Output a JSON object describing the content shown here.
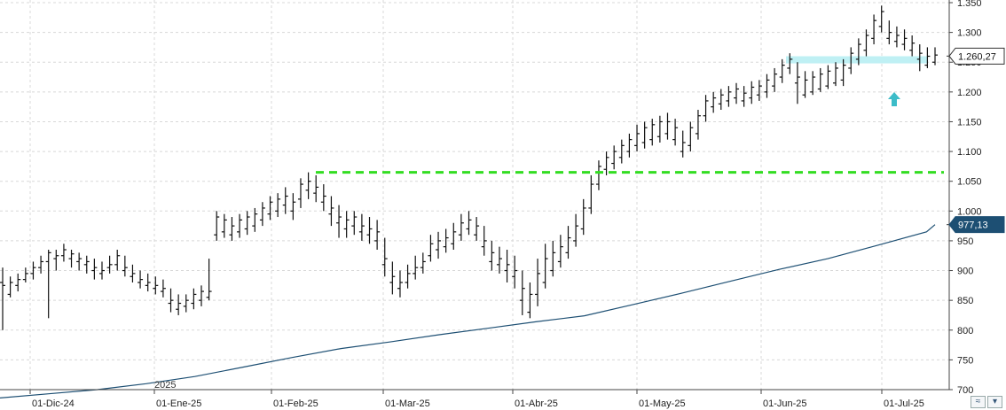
{
  "chart_data": {
    "type": "ohlc",
    "title": "",
    "y_axis": {
      "ticks": [
        "1.350",
        "1.300",
        "1.250",
        "1.200",
        "1.150",
        "1.100",
        "1.050",
        "1.000",
        "950",
        "900",
        "850",
        "800",
        "750",
        "700"
      ],
      "ylim": [
        700,
        1350
      ]
    },
    "x_axis": {
      "ticks": [
        "01-Dic-24",
        "01-Ene-25",
        "01-Feb-25",
        "01-Mar-25",
        "01-Abr-25",
        "01-May-25",
        "01-Jun-25",
        "01-Jul-25"
      ],
      "year_marker": "2025"
    },
    "price_flag": {
      "label": "1.260,27",
      "value": 1260.27,
      "color": "#ffffff"
    },
    "ma_flag": {
      "label": "977,13",
      "value": 977.13,
      "color": "#1d4f73"
    },
    "support_line": {
      "value": 1065,
      "color": "#33dd22",
      "style": "dashed"
    },
    "resistance_zone": {
      "low": 1248,
      "high": 1260,
      "color": "#bff0f4"
    },
    "arrow_marker": {
      "color": "#3cbcc8",
      "direction": "up"
    },
    "bars": [
      [
        880,
        905,
        800,
        875
      ],
      [
        860,
        890,
        855,
        880
      ],
      [
        875,
        895,
        865,
        885
      ],
      [
        885,
        905,
        880,
        895
      ],
      [
        895,
        915,
        885,
        905
      ],
      [
        905,
        925,
        895,
        915
      ],
      [
        915,
        935,
        820,
        930
      ],
      [
        920,
        935,
        900,
        925
      ],
      [
        925,
        945,
        915,
        935
      ],
      [
        920,
        935,
        905,
        928
      ],
      [
        915,
        930,
        900,
        920
      ],
      [
        910,
        925,
        895,
        915
      ],
      [
        900,
        920,
        885,
        905
      ],
      [
        895,
        915,
        885,
        900
      ],
      [
        905,
        925,
        895,
        910
      ],
      [
        910,
        935,
        900,
        925
      ],
      [
        900,
        925,
        890,
        905
      ],
      [
        890,
        910,
        880,
        895
      ],
      [
        880,
        900,
        870,
        885
      ],
      [
        875,
        895,
        865,
        880
      ],
      [
        870,
        890,
        860,
        875
      ],
      [
        865,
        885,
        855,
        870
      ],
      [
        845,
        870,
        830,
        850
      ],
      [
        835,
        860,
        825,
        845
      ],
      [
        840,
        860,
        830,
        850
      ],
      [
        845,
        870,
        835,
        860
      ],
      [
        850,
        875,
        840,
        865
      ],
      [
        855,
        920,
        850,
        865
      ],
      [
        960,
        1000,
        950,
        990
      ],
      [
        965,
        995,
        955,
        985
      ],
      [
        960,
        990,
        950,
        975
      ],
      [
        965,
        995,
        955,
        985
      ],
      [
        970,
        1000,
        960,
        990
      ],
      [
        975,
        1005,
        965,
        995
      ],
      [
        985,
        1015,
        975,
        1005
      ],
      [
        995,
        1025,
        985,
        1015
      ],
      [
        1000,
        1030,
        990,
        1020
      ],
      [
        1010,
        1040,
        995,
        1025
      ],
      [
        1000,
        1030,
        985,
        1015
      ],
      [
        1020,
        1055,
        1005,
        1045
      ],
      [
        1035,
        1065,
        1020,
        1050
      ],
      [
        1030,
        1060,
        1015,
        1040
      ],
      [
        1015,
        1045,
        1000,
        1025
      ],
      [
        995,
        1025,
        975,
        1005
      ],
      [
        980,
        1010,
        955,
        990
      ],
      [
        970,
        1000,
        955,
        985
      ],
      [
        975,
        1000,
        960,
        990
      ],
      [
        965,
        995,
        950,
        975
      ],
      [
        960,
        990,
        945,
        970
      ],
      [
        950,
        985,
        935,
        965
      ],
      [
        910,
        955,
        890,
        920
      ],
      [
        880,
        915,
        860,
        890
      ],
      [
        870,
        900,
        855,
        880
      ],
      [
        880,
        910,
        870,
        895
      ],
      [
        895,
        925,
        885,
        905
      ],
      [
        905,
        930,
        895,
        915
      ],
      [
        925,
        960,
        915,
        945
      ],
      [
        935,
        965,
        920,
        950
      ],
      [
        940,
        970,
        930,
        955
      ],
      [
        945,
        980,
        935,
        965
      ],
      [
        960,
        995,
        950,
        980
      ],
      [
        970,
        1000,
        960,
        985
      ],
      [
        960,
        990,
        950,
        975
      ],
      [
        940,
        975,
        925,
        950
      ],
      [
        915,
        950,
        900,
        930
      ],
      [
        910,
        940,
        895,
        920
      ],
      [
        900,
        935,
        880,
        910
      ],
      [
        890,
        925,
        870,
        900
      ],
      [
        850,
        900,
        825,
        870
      ],
      [
        830,
        880,
        820,
        860
      ],
      [
        860,
        920,
        840,
        895
      ],
      [
        880,
        945,
        870,
        920
      ],
      [
        900,
        950,
        890,
        930
      ],
      [
        915,
        960,
        905,
        940
      ],
      [
        930,
        975,
        920,
        955
      ],
      [
        950,
        995,
        940,
        975
      ],
      [
        970,
        1020,
        960,
        1005
      ],
      [
        1005,
        1060,
        995,
        1045
      ],
      [
        1045,
        1085,
        1035,
        1075
      ],
      [
        1070,
        1100,
        1060,
        1090
      ],
      [
        1080,
        1110,
        1070,
        1100
      ],
      [
        1090,
        1120,
        1080,
        1110
      ],
      [
        1100,
        1130,
        1090,
        1120
      ],
      [
        1110,
        1145,
        1100,
        1130
      ],
      [
        1115,
        1150,
        1105,
        1140
      ],
      [
        1120,
        1155,
        1110,
        1145
      ],
      [
        1125,
        1160,
        1115,
        1150
      ],
      [
        1130,
        1165,
        1120,
        1150
      ],
      [
        1120,
        1155,
        1110,
        1140
      ],
      [
        1100,
        1135,
        1090,
        1115
      ],
      [
        1110,
        1150,
        1100,
        1140
      ],
      [
        1130,
        1170,
        1120,
        1160
      ],
      [
        1160,
        1195,
        1150,
        1185
      ],
      [
        1175,
        1200,
        1165,
        1190
      ],
      [
        1180,
        1205,
        1170,
        1195
      ],
      [
        1185,
        1210,
        1175,
        1200
      ],
      [
        1190,
        1215,
        1180,
        1205
      ],
      [
        1185,
        1210,
        1175,
        1198
      ],
      [
        1190,
        1218,
        1180,
        1208
      ],
      [
        1195,
        1220,
        1185,
        1210
      ],
      [
        1200,
        1230,
        1190,
        1220
      ],
      [
        1210,
        1240,
        1200,
        1230
      ],
      [
        1225,
        1255,
        1215,
        1245
      ],
      [
        1240,
        1265,
        1230,
        1255
      ],
      [
        1215,
        1250,
        1180,
        1225
      ],
      [
        1195,
        1235,
        1190,
        1220
      ],
      [
        1200,
        1235,
        1195,
        1225
      ],
      [
        1205,
        1240,
        1200,
        1230
      ],
      [
        1210,
        1245,
        1205,
        1235
      ],
      [
        1215,
        1250,
        1210,
        1240
      ],
      [
        1220,
        1255,
        1210,
        1245
      ],
      [
        1240,
        1275,
        1230,
        1265
      ],
      [
        1255,
        1290,
        1245,
        1280
      ],
      [
        1270,
        1305,
        1260,
        1295
      ],
      [
        1290,
        1330,
        1280,
        1320
      ],
      [
        1310,
        1345,
        1300,
        1335
      ],
      [
        1290,
        1320,
        1280,
        1300
      ],
      [
        1285,
        1310,
        1275,
        1295
      ],
      [
        1280,
        1305,
        1270,
        1290
      ],
      [
        1270,
        1295,
        1260,
        1282
      ],
      [
        1255,
        1280,
        1235,
        1265
      ],
      [
        1245,
        1275,
        1240,
        1260
      ],
      [
        1250,
        1275,
        1245,
        1262
      ]
    ],
    "moving_average": [
      [
        0,
        686
      ],
      [
        40,
        693
      ],
      [
        80,
        700
      ],
      [
        120,
        710
      ],
      [
        160,
        722
      ],
      [
        200,
        738
      ],
      [
        240,
        754
      ],
      [
        280,
        769
      ],
      [
        320,
        780
      ],
      [
        360,
        792
      ],
      [
        400,
        803
      ],
      [
        440,
        814
      ],
      [
        480,
        824
      ],
      [
        520,
        843
      ],
      [
        560,
        862
      ],
      [
        600,
        882
      ],
      [
        640,
        902
      ],
      [
        680,
        920
      ],
      [
        720,
        942
      ],
      [
        761,
        965
      ],
      [
        768,
        977.13
      ]
    ]
  }
}
